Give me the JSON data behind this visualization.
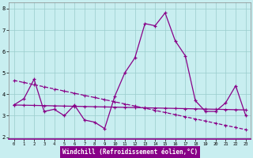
{
  "x": [
    0,
    1,
    2,
    3,
    4,
    5,
    6,
    7,
    8,
    9,
    10,
    11,
    12,
    13,
    14,
    15,
    16,
    17,
    18,
    19,
    20,
    21,
    22,
    23
  ],
  "y_main": [
    3.5,
    3.8,
    4.7,
    3.2,
    3.3,
    3.0,
    3.5,
    2.8,
    2.7,
    2.4,
    3.9,
    5.0,
    5.7,
    7.3,
    7.2,
    7.8,
    6.5,
    5.8,
    3.7,
    3.2,
    3.2,
    3.6,
    4.4,
    3.0
  ],
  "y_trend1": [
    4.65,
    4.55,
    4.45,
    4.35,
    4.25,
    4.15,
    4.05,
    3.95,
    3.85,
    3.75,
    3.65,
    3.55,
    3.45,
    3.35,
    3.25,
    3.15,
    3.05,
    2.95,
    2.85,
    2.75,
    2.65,
    2.55,
    2.45,
    2.35
  ],
  "y_trend2": [
    3.5,
    3.49,
    3.48,
    3.47,
    3.46,
    3.45,
    3.44,
    3.43,
    3.42,
    3.41,
    3.4,
    3.39,
    3.38,
    3.37,
    3.36,
    3.35,
    3.34,
    3.33,
    3.32,
    3.31,
    3.3,
    3.29,
    3.28,
    3.27
  ],
  "line_color": "#880088",
  "bg_color": "#c8eef0",
  "grid_color": "#99cccc",
  "xlabel": "Windchill (Refroidissement éolien,°C)",
  "xlabel_bg": "#880088",
  "xlabel_fg": "#ffffff",
  "ylim": [
    1.9,
    8.3
  ],
  "xlim": [
    -0.5,
    23.5
  ],
  "yticks": [
    2,
    3,
    4,
    5,
    6,
    7,
    8
  ],
  "xticks": [
    0,
    1,
    2,
    3,
    4,
    5,
    6,
    7,
    8,
    9,
    10,
    11,
    12,
    13,
    14,
    15,
    16,
    17,
    18,
    19,
    20,
    21,
    22,
    23
  ]
}
